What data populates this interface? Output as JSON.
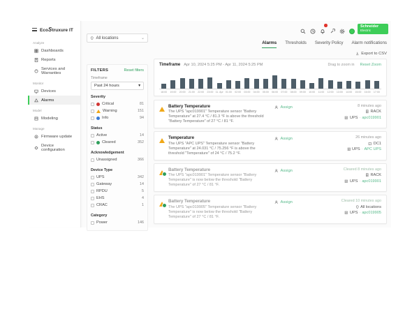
{
  "brand": {
    "logo_prefix": "Eco",
    "logo_loop": "S",
    "logo_suffix": "truxure IT"
  },
  "header": {
    "se_logo_line1": "Schneider",
    "se_logo_line2": "Electric"
  },
  "sidebar": {
    "sections": [
      {
        "label": "Analyze",
        "items": [
          {
            "label": "Dashboards"
          },
          {
            "label": "Reports"
          },
          {
            "label": "Services and Warranties"
          }
        ]
      },
      {
        "label": "Monitor",
        "items": [
          {
            "label": "Devices"
          },
          {
            "label": "Alarms"
          }
        ]
      },
      {
        "label": "Model",
        "items": [
          {
            "label": "Modeling"
          }
        ]
      },
      {
        "label": "Manage",
        "items": [
          {
            "label": "Firmware update"
          },
          {
            "label": "Device configuration"
          }
        ]
      }
    ]
  },
  "tabs": [
    {
      "label": "Alarms"
    },
    {
      "label": "Thresholds"
    },
    {
      "label": "Severity Policy"
    },
    {
      "label": "Alarm notifications"
    }
  ],
  "location_filter": {
    "value": "All locations"
  },
  "filters": {
    "title": "FILTERS",
    "reset_label": "Reset filters",
    "timeframe_label": "Timeframe",
    "timeframe_value": "Past 24 hours",
    "groups": [
      {
        "label": "Severity",
        "items": [
          {
            "label": "Critical",
            "count": "81",
            "icon": "critical-icon"
          },
          {
            "label": "Warning",
            "count": "151",
            "icon": "warning-icon"
          },
          {
            "label": "Info",
            "count": "94",
            "icon": "info-icon"
          }
        ]
      },
      {
        "label": "Status",
        "items": [
          {
            "label": "Active",
            "count": "14"
          },
          {
            "label": "Cleared",
            "count": "352",
            "icon": "cleared-icon"
          }
        ]
      },
      {
        "label": "Acknowledgement",
        "items": [
          {
            "label": "Unassigned",
            "count": "366"
          }
        ]
      },
      {
        "label": "Device Type",
        "items": [
          {
            "label": "UPS",
            "count": "342"
          },
          {
            "label": "Gateway",
            "count": "14"
          },
          {
            "label": "RPDU",
            "count": "5"
          },
          {
            "label": "EHS",
            "count": "4"
          },
          {
            "label": "CRAC",
            "count": "1"
          }
        ]
      },
      {
        "label": "Category",
        "items": [
          {
            "label": "Power",
            "count": "146"
          }
        ]
      }
    ]
  },
  "export_label": "Export to CSV",
  "chart_header": {
    "timeframe_label": "Timeframe",
    "range": "Apr 10, 2024 5:25 PM  -  Apr 11, 2024 5:25 PM",
    "drag_hint": "Drag to zoom in",
    "reset_zoom_label": "Reset Zoom"
  },
  "chart_data": {
    "type": "bar",
    "title": "Alarm count per hour",
    "x": [
      "18:00",
      "19:00",
      "20:00",
      "21:00",
      "22:00",
      "23:00",
      "11. Apr",
      "01:00",
      "02:00",
      "03:00",
      "04:00",
      "05:00",
      "06:00",
      "07:00",
      "08:00",
      "09:00",
      "10:00",
      "11:00",
      "12:00",
      "13:00",
      "14:00",
      "15:00",
      "16:00",
      "17:00"
    ],
    "values": [
      5,
      9,
      11,
      10,
      10,
      12,
      6,
      9,
      8,
      11,
      10,
      10,
      14,
      10,
      10,
      9,
      6,
      11,
      9,
      7,
      8,
      7,
      9,
      8
    ],
    "xlabel": "",
    "ylabel": "",
    "ylim": [
      0,
      16
    ],
    "bar_color": "#4d5d68",
    "grid": false,
    "legend": "none"
  },
  "alarms": [
    {
      "severity": "warning",
      "title": "Battery Temperature",
      "description": "The UPS \"apc019901\" Temperature sensor \"Battery Temperature\" at 27.4 °C / 81.3 °F is above the threshold \"Battery Temperature\" of 27 °C / 81 °F.",
      "assign_label": "Assign",
      "time_ago": "8 minutes ago",
      "location": "RACK",
      "location_icon": "rack-icon",
      "device_type": "UPS",
      "device_name": "apc019901"
    },
    {
      "severity": "warning",
      "title": "Temperature",
      "description": "The UPS \"APC UPS\" Temperature sensor \"Battery Temperature\" at 24.031 °C / 75.256 °F is above the threshold \"Temperature\" of 24 °C / 75.2 °F.",
      "assign_label": "Assign",
      "time_ago": "26 minutes ago",
      "location": "DC1",
      "location_icon": "building-icon",
      "device_type": "UPS",
      "device_name": "APC UPS"
    },
    {
      "severity": "cleared",
      "title": "Battery Temperature",
      "description": "The UPS \"apc019901\" Temperature sensor \"Battery Temperature\" is now below the threshold \"Battery Temperature\" of 27 °C / 81 °F.",
      "assign_label": "Assign",
      "time_ago": "Cleared 8 minutes ago",
      "location": "RACK",
      "location_icon": "rack-icon",
      "device_type": "UPS",
      "device_name": "apc019901"
    },
    {
      "severity": "cleared",
      "title": "Battery Temperature",
      "description": "The UPS \"apc019905\" Temperature sensor \"Battery Temperature\" is now below the threshold \"Battery Temperature\" of 27 °C / 81 °F.",
      "assign_label": "Assign",
      "time_ago": "Cleared 10 minutes ago",
      "location": "All locations",
      "location_icon": "pin-icon",
      "device_type": "UPS",
      "device_name": "apc019905"
    }
  ],
  "colors": {
    "brand_green": "#3dcd58",
    "link_green": "#57b98a",
    "accent_green": "#2e9e5b",
    "critical_red": "#d13532",
    "warning_amber": "#f0a818",
    "info_blue": "#3a7bd5",
    "bar_slate": "#4d5d68"
  }
}
